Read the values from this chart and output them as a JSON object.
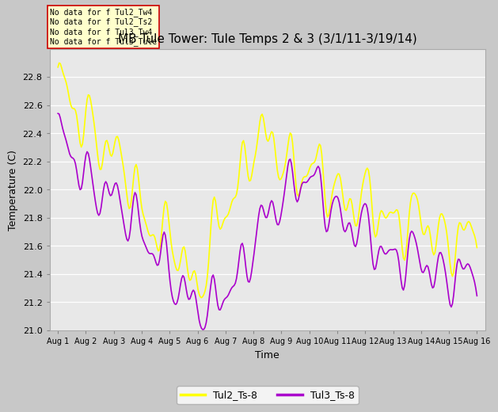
{
  "title": "MB Tule Tower: Tule Temps 2 & 3 (3/1/11-3/19/14)",
  "xlabel": "Time",
  "ylabel": "Temperature (C)",
  "ylim": [
    21.0,
    23.0
  ],
  "yticks": [
    21.0,
    21.2,
    21.4,
    21.6,
    21.8,
    22.0,
    22.2,
    22.4,
    22.6,
    22.8
  ],
  "xtick_labels": [
    "Aug 1",
    "Aug 2",
    "Aug 3",
    "Aug 4",
    "Aug 5",
    "Aug 6",
    "Aug 7",
    "Aug 8",
    "Aug 9",
    "Aug 10",
    "Aug 11",
    "Aug 12",
    "Aug 13",
    "Aug 14",
    "Aug 15",
    "Aug 16"
  ],
  "color_tul2": "#ffff00",
  "color_tul3": "#aa00cc",
  "legend_labels": [
    "Tul2_Ts-8",
    "Tul3_Ts-8"
  ],
  "plot_bg": "#e8e8e8",
  "fig_bg": "#c8c8c8",
  "annotation_text": "No data for f Tul2_Tw4\nNo data for f Tul2_Ts2\nNo data for f Tul3_Tw4\nNo data for f Tul3_Tule",
  "title_fontsize": 11,
  "axis_fontsize": 9,
  "tick_fontsize": 8
}
